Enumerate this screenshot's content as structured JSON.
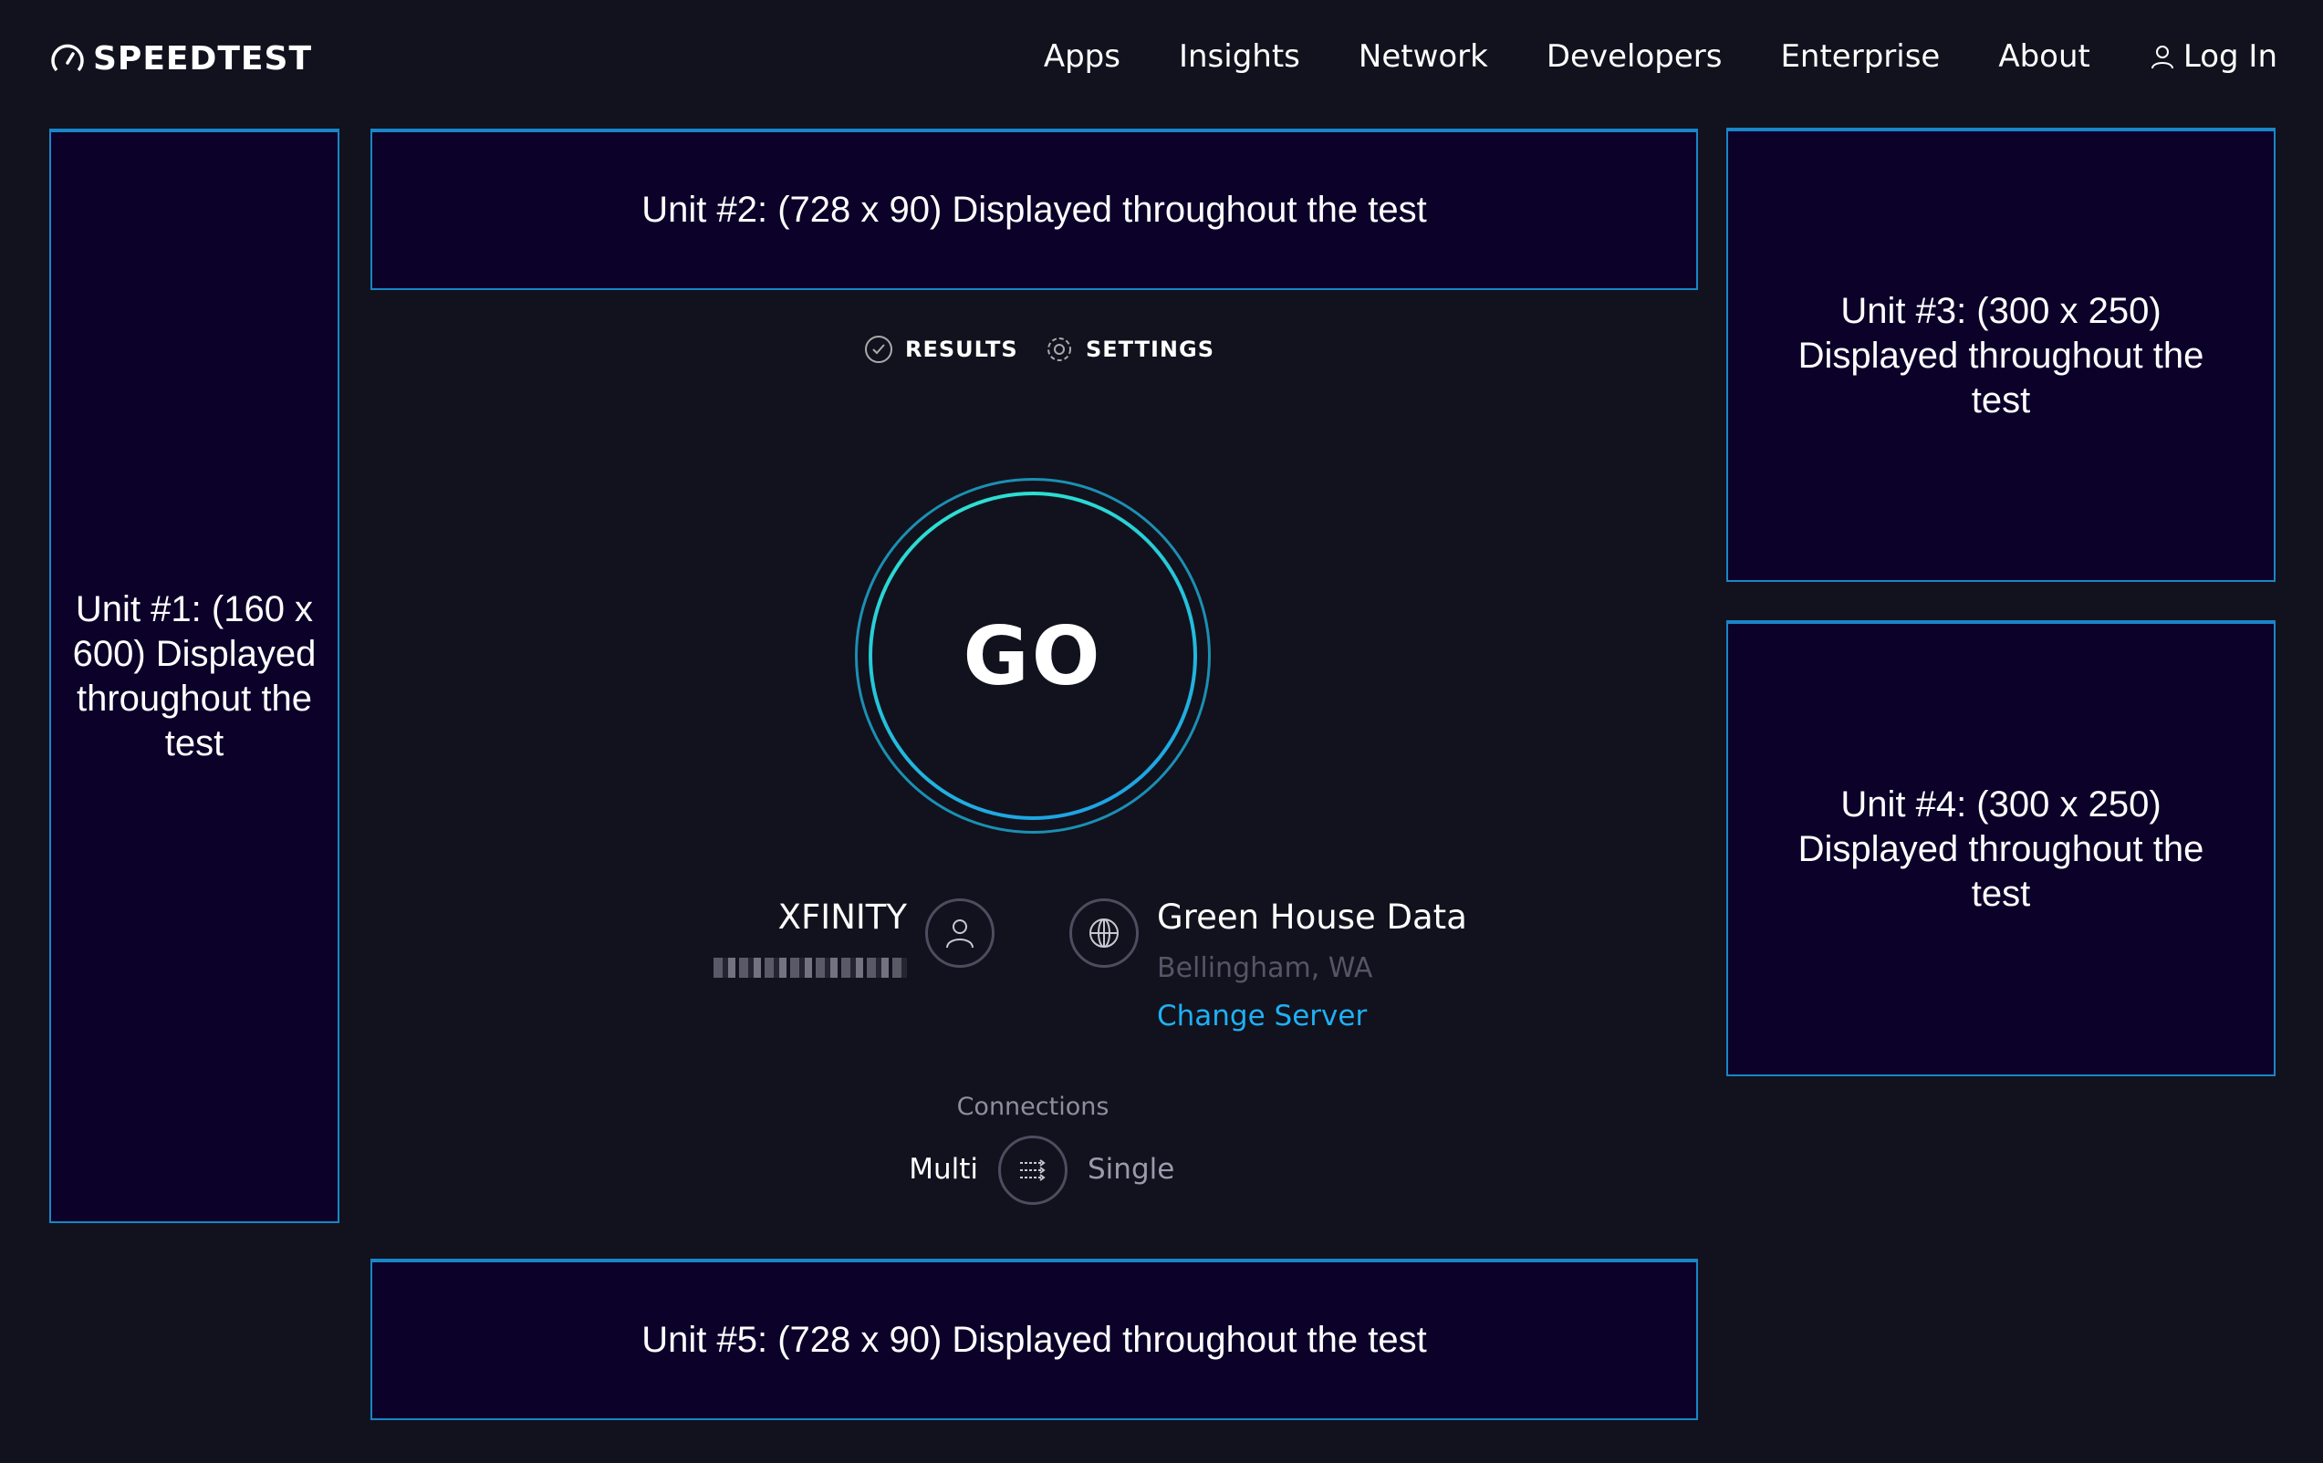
{
  "header": {
    "logo": "SPEEDTEST",
    "nav": [
      "Apps",
      "Insights",
      "Network",
      "Developers",
      "Enterprise",
      "About"
    ],
    "login": "Log In"
  },
  "ads": {
    "unit1": "Unit #1: (160 x 600) Displayed throughout the test",
    "unit2": "Unit #2: (728 x 90) Displayed throughout the test",
    "unit3": "Unit #3: (300 x 250) Displayed throughout the test",
    "unit4": "Unit #4: (300 x 250) Displayed throughout the test",
    "unit5": "Unit #5: (728 x 90) Displayed throughout the test"
  },
  "tabs": {
    "results": "RESULTS",
    "settings": "SETTINGS"
  },
  "go": "GO",
  "isp": {
    "name": "XFINITY",
    "icon": "user-icon"
  },
  "server": {
    "name": "Green House Data",
    "location": "Bellingham, WA",
    "change": "Change Server",
    "icon": "globe-icon"
  },
  "connections": {
    "label": "Connections",
    "multi": "Multi",
    "single": "Single",
    "selected": "Multi"
  },
  "colors": {
    "background": "#11121d",
    "ad_fill": "#0b0129",
    "ad_border": "#1a85c8",
    "accent": "#1fb0f5",
    "ring": "#2ee8d0"
  }
}
